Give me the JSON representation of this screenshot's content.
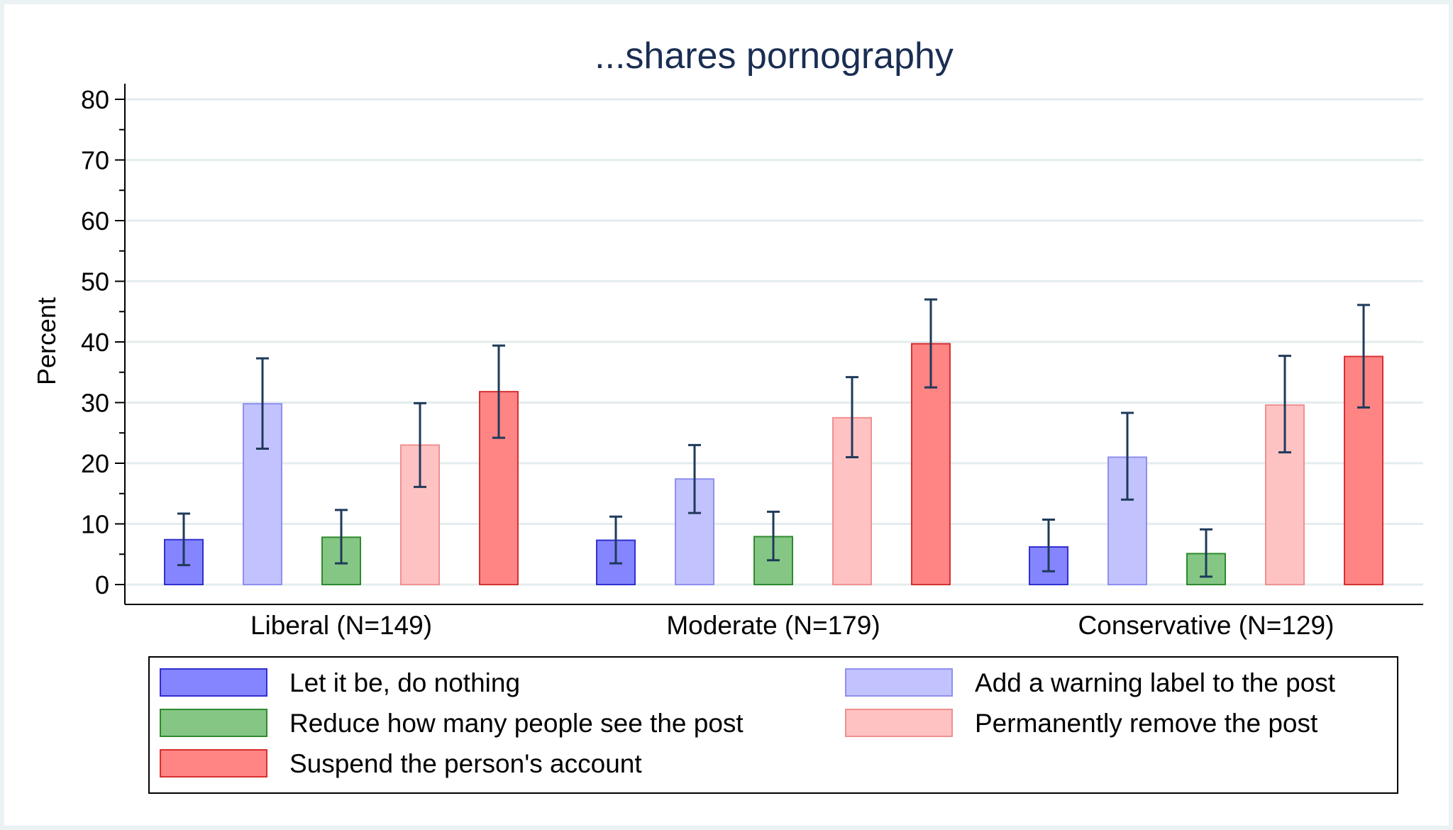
{
  "chart_data": {
    "type": "bar",
    "title": "...shares pornography",
    "ylabel": "Percent",
    "xlabel": "",
    "ylim": [
      0,
      80
    ],
    "yticks": [
      0,
      10,
      20,
      30,
      40,
      50,
      60,
      70,
      80
    ],
    "grid": true,
    "legend_position": "bottom",
    "categories": [
      "Liberal (N=149)",
      "Moderate (N=179)",
      "Conservative (N=129)"
    ],
    "series": [
      {
        "name": "Let it be, do nothing",
        "color": "#8585ff",
        "stroke": "#3030d0",
        "values": [
          7.4,
          7.3,
          6.2
        ],
        "ci_low": [
          3.2,
          3.5,
          2.2
        ],
        "ci_high": [
          11.7,
          11.2,
          10.7
        ]
      },
      {
        "name": "Add a warning label to the post",
        "color": "#c2c2ff",
        "stroke": "#8f8ff0",
        "values": [
          29.8,
          17.4,
          21.0
        ],
        "ci_low": [
          22.4,
          11.8,
          14.0
        ],
        "ci_high": [
          37.3,
          23.0,
          28.3
        ]
      },
      {
        "name": "Reduce how many people see the post",
        "color": "#85c685",
        "stroke": "#2e8a2e",
        "values": [
          7.8,
          7.9,
          5.1
        ],
        "ci_low": [
          3.5,
          4.0,
          1.3
        ],
        "ci_high": [
          12.3,
          12.0,
          9.1
        ]
      },
      {
        "name": "Permanently remove the post",
        "color": "#ffc2c2",
        "stroke": "#f09090",
        "values": [
          23.0,
          27.5,
          29.6
        ],
        "ci_low": [
          16.1,
          21.0,
          21.8
        ],
        "ci_high": [
          29.9,
          34.2,
          37.7
        ]
      },
      {
        "name": "Suspend the person's account",
        "color": "#ff8585",
        "stroke": "#d83030",
        "values": [
          31.8,
          39.7,
          37.6
        ],
        "ci_low": [
          24.2,
          32.5,
          29.2
        ],
        "ci_high": [
          39.4,
          47.0,
          46.1
        ]
      }
    ]
  }
}
